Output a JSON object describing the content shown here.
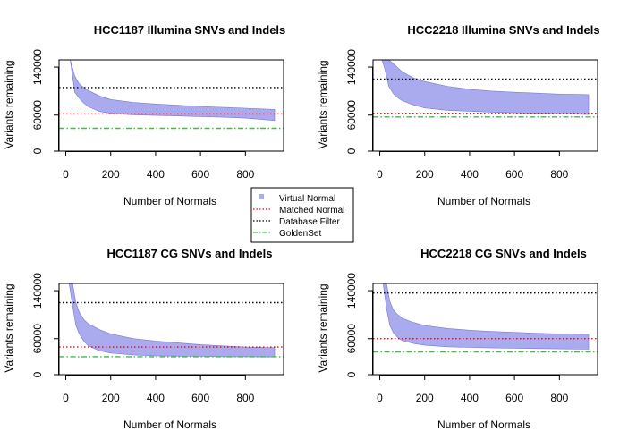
{
  "chart_data": [
    {
      "type": "area",
      "title": "HCC1187 Illumina SNVs and Indels",
      "xlabel": "Number of Normals",
      "ylabel": "Variants remaining",
      "xlim": [
        -30,
        970
      ],
      "ylim": [
        0,
        152000
      ],
      "xticks": [
        "0",
        "200",
        "400",
        "600",
        "800"
      ],
      "yticks": [
        "0",
        "60000",
        "140000"
      ],
      "virtual_normal_band": {
        "x": [
          20,
          40,
          60,
          80,
          100,
          150,
          200,
          300,
          400,
          500,
          600,
          700,
          800,
          930
        ],
        "upper": [
          152000,
          125000,
          112000,
          106000,
          101000,
          92000,
          86000,
          81000,
          78500,
          76500,
          74500,
          73000,
          71500,
          69500
        ],
        "lower": [
          152000,
          98000,
          88000,
          80000,
          74000,
          66000,
          63000,
          60500,
          59500,
          58500,
          57500,
          56500,
          55000,
          51000
        ]
      },
      "matched_normal": 62000,
      "database_filter": 106000,
      "goldenset": 38000
    },
    {
      "type": "area",
      "title": "HCC2218 Illumina SNVs and Indels",
      "xlabel": "Number of Normals",
      "ylabel": "Variants remaining",
      "xlim": [
        -30,
        970
      ],
      "ylim": [
        0,
        152000
      ],
      "xticks": [
        "0",
        "200",
        "400",
        "600",
        "800"
      ],
      "yticks": [
        "0",
        "60000",
        "140000"
      ],
      "virtual_normal_band": {
        "x": [
          10,
          20,
          40,
          60,
          80,
          100,
          150,
          200,
          300,
          400,
          500,
          600,
          700,
          800,
          930
        ],
        "upper": [
          152000,
          152000,
          152000,
          146000,
          139000,
          132000,
          122000,
          116000,
          108000,
          103000,
          100000,
          98000,
          96500,
          95000,
          94000
        ],
        "lower": [
          152000,
          140000,
          108000,
          96000,
          89000,
          84000,
          77000,
          72000,
          68000,
          66500,
          65000,
          64000,
          63000,
          62000,
          61000
        ]
      },
      "matched_normal": 63000,
      "database_filter": 120000,
      "goldenset": 57000
    },
    {
      "type": "area",
      "title": "HCC1187 CG SNVs and Indels",
      "xlabel": "Number of Normals",
      "ylabel": "Variants remaining",
      "xlim": [
        -30,
        970
      ],
      "ylim": [
        0,
        152000
      ],
      "xticks": [
        "0",
        "200",
        "400",
        "600",
        "800"
      ],
      "yticks": [
        "0",
        "60000",
        "140000"
      ],
      "virtual_normal_band": {
        "x": [
          15,
          30,
          45,
          60,
          80,
          100,
          150,
          200,
          300,
          400,
          500,
          600,
          700,
          800,
          930
        ],
        "upper": [
          152000,
          152000,
          120000,
          104000,
          92000,
          85000,
          75000,
          68000,
          60000,
          56000,
          53000,
          50000,
          48000,
          46000,
          45000
        ],
        "lower": [
          152000,
          115000,
          82000,
          68000,
          56000,
          48000,
          40000,
          36000,
          33000,
          31500,
          31000,
          30500,
          30000,
          30000,
          29500
        ]
      },
      "matched_normal": 46000,
      "database_filter": 120000,
      "goldenset": 30000
    },
    {
      "type": "area",
      "title": "HCC2218 CG SNVs and Indels",
      "xlabel": "Number of Normals",
      "ylabel": "Variants remaining",
      "xlim": [
        -30,
        970
      ],
      "ylim": [
        0,
        152000
      ],
      "xticks": [
        "0",
        "200",
        "400",
        "600",
        "800"
      ],
      "yticks": [
        "0",
        "60000",
        "140000"
      ],
      "virtual_normal_band": {
        "x": [
          15,
          30,
          45,
          60,
          80,
          100,
          150,
          200,
          300,
          400,
          500,
          600,
          700,
          800,
          930
        ],
        "upper": [
          152000,
          152000,
          122000,
          108000,
          100000,
          94000,
          87000,
          82000,
          77000,
          74000,
          72000,
          70500,
          69000,
          68000,
          67000
        ],
        "lower": [
          152000,
          110000,
          82000,
          70000,
          62000,
          57000,
          52000,
          49000,
          46500,
          45500,
          44500,
          44000,
          43500,
          43000,
          42500
        ]
      },
      "matched_normal": 60000,
      "database_filter": 136000,
      "goldenset": 38000
    }
  ],
  "legend": {
    "items": [
      {
        "label": "Virtual Normal",
        "style": "square",
        "color": "#aaaaee"
      },
      {
        "label": "Matched Normal",
        "style": "dotted",
        "color": "#ff0000"
      },
      {
        "label": "Database Filter",
        "style": "dotted",
        "color": "#000000"
      },
      {
        "label": "GoldenSet",
        "style": "dotdash",
        "color": "#44bb44"
      }
    ]
  },
  "colors": {
    "virtual_normal_fill": "#aaaaee",
    "virtual_normal_stroke": "#7777dd",
    "matched_normal": "#ff0000",
    "database_filter": "#000000",
    "goldenset": "#44bb44"
  }
}
